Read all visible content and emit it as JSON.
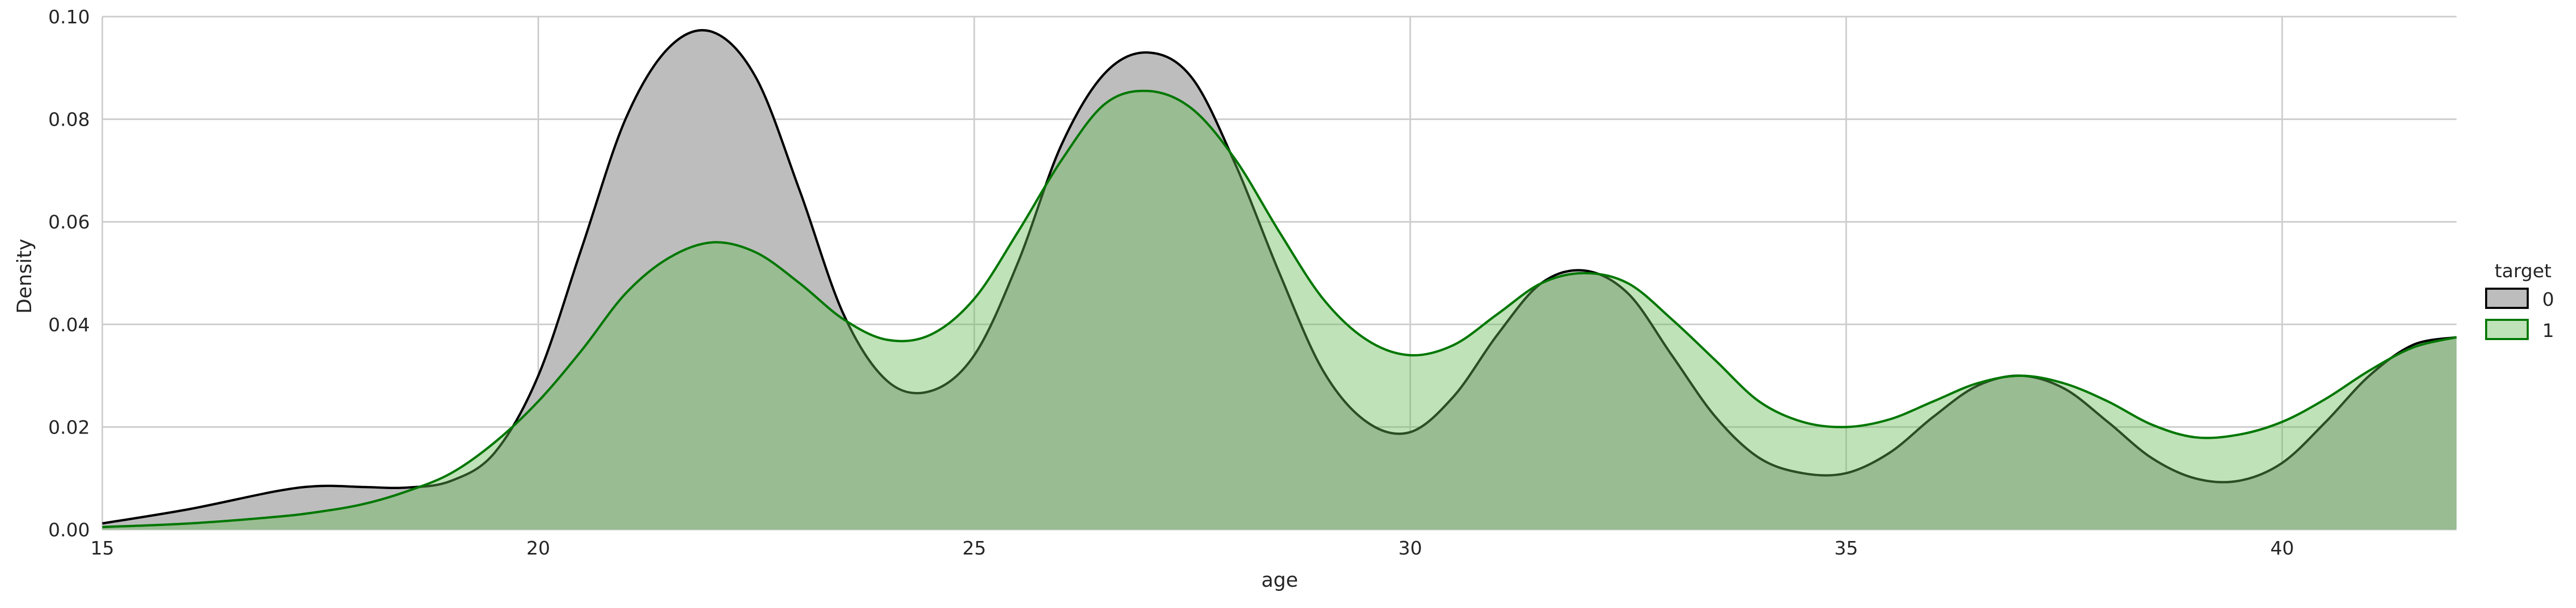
{
  "chart_data": {
    "type": "area",
    "title": "",
    "xlabel": "age",
    "ylabel": "Density",
    "xlim": [
      15,
      42
    ],
    "ylim": [
      0,
      0.1
    ],
    "x_ticks": [
      "15",
      "20",
      "25",
      "30",
      "35",
      "40"
    ],
    "y_ticks": [
      "0.00",
      "0.02",
      "0.04",
      "0.06",
      "0.08",
      "0.10"
    ],
    "grid": true,
    "legend": {
      "title": "target",
      "placement": "right",
      "entries": [
        "0",
        "1"
      ]
    },
    "series": [
      {
        "name": "0",
        "fill": "#bdbdbd",
        "stroke": "#000000",
        "x": [
          15,
          16,
          17,
          17.5,
          18,
          18.5,
          19,
          19.5,
          20,
          20.5,
          21,
          21.5,
          22,
          22.5,
          23,
          23.5,
          24,
          24.5,
          25,
          25.5,
          26,
          26.5,
          27,
          27.5,
          28,
          28.5,
          29,
          29.5,
          30,
          30.5,
          31,
          31.5,
          32,
          32.5,
          33,
          33.5,
          34,
          34.5,
          35,
          35.5,
          36,
          36.5,
          37,
          37.5,
          38,
          38.5,
          39,
          39.5,
          40,
          40.5,
          41,
          41.5,
          42
        ],
        "values": [
          0.0012,
          0.004,
          0.0075,
          0.0085,
          0.0083,
          0.0082,
          0.0095,
          0.015,
          0.03,
          0.055,
          0.08,
          0.094,
          0.097,
          0.088,
          0.066,
          0.042,
          0.029,
          0.027,
          0.034,
          0.052,
          0.075,
          0.089,
          0.093,
          0.088,
          0.071,
          0.05,
          0.031,
          0.021,
          0.019,
          0.026,
          0.038,
          0.048,
          0.0505,
          0.046,
          0.034,
          0.022,
          0.014,
          0.011,
          0.011,
          0.015,
          0.022,
          0.028,
          0.03,
          0.0275,
          0.021,
          0.014,
          0.01,
          0.0095,
          0.013,
          0.021,
          0.03,
          0.036,
          0.0375
        ]
      },
      {
        "name": "1",
        "fill": "#66bb55",
        "stroke": "#007700",
        "x": [
          15,
          16,
          17,
          17.5,
          18,
          18.5,
          19,
          19.5,
          20,
          20.5,
          21,
          21.5,
          22,
          22.5,
          23,
          23.5,
          24,
          24.5,
          25,
          25.5,
          26,
          26.5,
          27,
          27.5,
          28,
          28.5,
          29,
          29.5,
          30,
          30.5,
          31,
          31.5,
          32,
          32.5,
          33,
          33.5,
          34,
          34.5,
          35,
          35.5,
          36,
          36.5,
          37,
          37.5,
          38,
          38.5,
          39,
          39.5,
          40,
          40.5,
          41,
          41.5,
          42
        ],
        "values": [
          0.0005,
          0.0012,
          0.0025,
          0.0035,
          0.005,
          0.0075,
          0.011,
          0.017,
          0.025,
          0.035,
          0.046,
          0.053,
          0.056,
          0.054,
          0.048,
          0.041,
          0.037,
          0.038,
          0.045,
          0.058,
          0.072,
          0.083,
          0.0855,
          0.082,
          0.072,
          0.058,
          0.045,
          0.037,
          0.034,
          0.036,
          0.042,
          0.048,
          0.05,
          0.048,
          0.041,
          0.033,
          0.025,
          0.021,
          0.02,
          0.0215,
          0.025,
          0.0285,
          0.03,
          0.0285,
          0.025,
          0.0205,
          0.018,
          0.0185,
          0.021,
          0.0255,
          0.031,
          0.0355,
          0.0375
        ]
      }
    ]
  }
}
